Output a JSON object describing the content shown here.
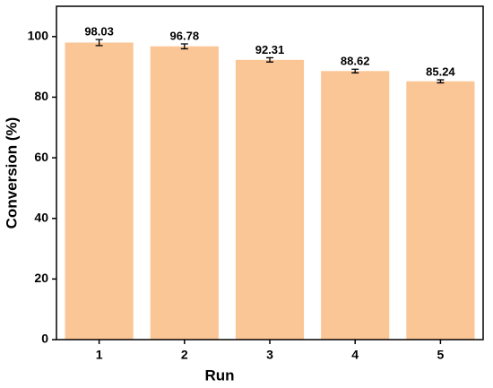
{
  "chart_data": {
    "type": "bar",
    "x_label": "Run",
    "y_label": "Conversion (%)",
    "categories": [
      "1",
      "2",
      "3",
      "4",
      "5"
    ],
    "values": [
      98.03,
      96.78,
      92.31,
      88.62,
      85.24
    ],
    "errors": [
      1.0,
      0.8,
      0.7,
      0.6,
      0.5
    ],
    "color": "#fbc696",
    "ylim": [
      0,
      110
    ],
    "yticks": [
      0,
      20,
      40,
      60,
      80,
      100
    ]
  }
}
